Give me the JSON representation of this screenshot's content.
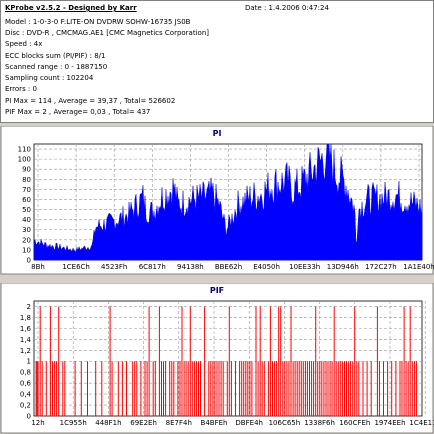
{
  "header": {
    "program": "KProbe v2.5.2 - Designed by Karr",
    "date": "Date : 1.4.2006 0:47:24"
  },
  "info_lines": [
    "Model : 1-0-3-0 F:LITE-ON DVDRW SOHW-16735 JS0B",
    "Disc : DVD-R , CMCMAG.AE1 [CMC Magnetics Corporation]",
    "Speed : 4x",
    "ECC blocks sum (PI/PIF) : 8/1",
    "Scanned range : 0 - 1887150",
    "Sampling count : 102204",
    "Errors : 0",
    "PI Max = 114 , Average = 39,37 , Total= 526602",
    "PIF Max = 2 , Average= 0,03 , Total= 437"
  ],
  "colors": {
    "pi_fill": "#0000ff",
    "pif_line": "#ff0000",
    "chart_title": "#000080",
    "background": "#d4d0c8"
  },
  "chart_data": [
    {
      "type": "area",
      "title": "PI",
      "ylim": [
        0,
        115
      ],
      "yticks": [
        0,
        10,
        20,
        30,
        40,
        50,
        60,
        70,
        80,
        90,
        100,
        110
      ],
      "xlim": [
        0,
        1887150
      ],
      "xtick_labels": [
        "8Bh",
        "1CE6Ch",
        "4523Fh",
        "6C817h",
        "94138h",
        "BBE62h",
        "E4050h",
        "10EE33h",
        "13D946h",
        "172C27h",
        "1A1E40h"
      ],
      "grid": true,
      "profile": {
        "x": [
          0,
          60000,
          120000,
          170000,
          200000,
          283000,
          300000,
          380000,
          460000,
          530000,
          545000,
          580000,
          620000,
          680000,
          700000,
          760000,
          820000,
          870000,
          900000,
          935000,
          955000,
          990000,
          1050000,
          1100000,
          1160000,
          1230000,
          1260000,
          1300000,
          1360000,
          1400000,
          1430000,
          1460000,
          1520000,
          1560000,
          1568000,
          1576000,
          1620000,
          1700000,
          1760000,
          1800000,
          1860000,
          1887150
        ],
        "y": [
          20,
          15,
          13,
          11,
          10,
          14,
          33,
          38,
          45,
          62,
          50,
          48,
          62,
          72,
          55,
          60,
          62,
          65,
          55,
          30,
          38,
          55,
          62,
          65,
          75,
          78,
          70,
          75,
          90,
          100,
          108,
          90,
          75,
          50,
          8,
          50,
          60,
          62,
          65,
          60,
          55,
          50
        ]
      }
    },
    {
      "type": "bar",
      "title": "PIF",
      "ylim": [
        0,
        2.1
      ],
      "yticks": [
        0,
        0.2,
        0.4,
        0.6,
        0.8,
        1,
        1.2,
        1.4,
        1.6,
        1.8,
        2
      ],
      "xlim": [
        0,
        1887150
      ],
      "xtick_labels": [
        "12h",
        "1C955h",
        "448F1h",
        "69E2Eh",
        "8E7F4h",
        "B4BFEh",
        "DBFE4h",
        "106C65h",
        "1338F6h",
        "160CFEh",
        "1974EEh",
        "1C4E11h"
      ],
      "grid": true,
      "spikes_value_2": [
        30000,
        80000,
        120000,
        370000,
        560000,
        610000,
        720000,
        760000,
        830000,
        950000,
        1080000,
        1100000,
        1150000,
        1190000,
        1200000,
        1250000,
        1370000,
        1460000,
        1560000,
        1670000,
        1800000,
        1830000
      ],
      "spikes_value_1": [
        10000,
        15000,
        20000,
        40000,
        60000,
        90000,
        100000,
        110000,
        140000,
        150000,
        200000,
        230000,
        260000,
        300000,
        330000,
        380000,
        410000,
        430000,
        450000,
        480000,
        490000,
        500000,
        520000,
        540000,
        550000,
        580000,
        590000,
        620000,
        630000,
        640000,
        660000,
        670000,
        680000,
        700000,
        710000,
        730000,
        740000,
        750000,
        770000,
        780000,
        790000,
        800000,
        810000,
        850000,
        860000,
        870000,
        880000,
        890000,
        900000,
        910000,
        920000,
        940000,
        960000,
        980000,
        1000000,
        1010000,
        1020000,
        1030000,
        1040000,
        1050000,
        1060000,
        1090000,
        1110000,
        1120000,
        1140000,
        1160000,
        1170000,
        1180000,
        1210000,
        1220000,
        1230000,
        1240000,
        1260000,
        1270000,
        1280000,
        1290000,
        1300000,
        1310000,
        1320000,
        1330000,
        1340000,
        1350000,
        1360000,
        1380000,
        1390000,
        1400000,
        1410000,
        1420000,
        1430000,
        1440000,
        1450000,
        1470000,
        1480000,
        1490000,
        1500000,
        1510000,
        1520000,
        1530000,
        1540000,
        1550000,
        1570000,
        1580000,
        1600000,
        1620000,
        1640000,
        1680000,
        1700000,
        1720000,
        1740000,
        1760000,
        1780000,
        1790000,
        1810000,
        1820000,
        1840000,
        1850000,
        1860000
      ]
    }
  ]
}
